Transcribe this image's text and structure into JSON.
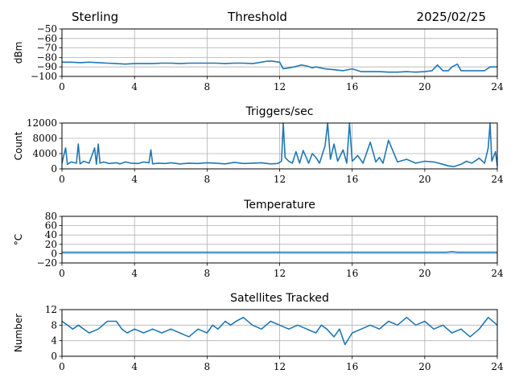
{
  "header": {
    "left": "Sterling",
    "center": "Threshold",
    "right": "2025/02/25"
  },
  "colors": {
    "line": "#1f77b4",
    "grid": "#b0b0b0",
    "axis": "#000000"
  },
  "chart_data": [
    {
      "type": "line",
      "title": "",
      "ylabel": "dBm",
      "xlim": [
        0,
        24
      ],
      "ylim": [
        -100,
        -50
      ],
      "xticks": [
        0,
        4,
        8,
        12,
        16,
        20,
        24
      ],
      "yticks": [
        -100,
        -90,
        -80,
        -70,
        -60,
        -50
      ],
      "ytick_labels": [
        "−100",
        "−90",
        "−80",
        "−70",
        "−60",
        "−50"
      ],
      "grid": true,
      "series": [
        {
          "x": [
            0,
            0.5,
            1,
            1.5,
            2,
            2.5,
            3,
            3.5,
            4,
            4.5,
            5,
            5.5,
            6,
            6.5,
            7,
            7.5,
            8,
            8.5,
            9,
            9.5,
            10,
            10.5,
            11,
            11.3,
            11.6,
            12,
            12.2,
            12.5,
            12.8,
            13,
            13.2,
            13.5,
            13.8,
            14,
            14.5,
            15,
            15.5,
            16,
            16.5,
            17,
            17.5,
            18,
            18.5,
            19,
            19.5,
            20,
            20.4,
            20.7,
            21,
            21.3,
            21.5,
            21.8,
            22,
            22.5,
            23,
            23.3,
            23.6,
            24
          ],
          "y": [
            -85,
            -85,
            -85.5,
            -85,
            -85.5,
            -86,
            -86.5,
            -87,
            -86.5,
            -86.5,
            -86.5,
            -86,
            -86,
            -86.5,
            -86,
            -86,
            -86,
            -86,
            -86.5,
            -86,
            -86,
            -86.5,
            -85,
            -84,
            -84,
            -85,
            -92,
            -91,
            -90,
            -89,
            -88,
            -89,
            -91,
            -90,
            -92,
            -93,
            -94,
            -92,
            -95,
            -95,
            -95,
            -95.5,
            -95.5,
            -95,
            -95.5,
            -95,
            -94,
            -88,
            -94,
            -94,
            -90,
            -87,
            -94,
            -94,
            -94,
            -94,
            -90,
            -90
          ]
        }
      ]
    },
    {
      "type": "line",
      "title": "Triggers/sec",
      "ylabel": "Count",
      "xlim": [
        0,
        24
      ],
      "ylim": [
        0,
        12000
      ],
      "xticks": [
        0,
        4,
        8,
        12,
        16,
        20,
        24
      ],
      "yticks": [
        0,
        4000,
        8000,
        12000
      ],
      "ytick_labels": [
        "0",
        "4000",
        "8000",
        "12000"
      ],
      "grid": true,
      "series": [
        {
          "x": [
            0,
            0.2,
            0.3,
            0.5,
            0.8,
            0.9,
            1,
            1.2,
            1.5,
            1.8,
            1.9,
            2,
            2.1,
            2.3,
            2.6,
            3,
            3.2,
            3.5,
            3.8,
            4.2,
            4.5,
            4.8,
            4.9,
            5,
            5.3,
            5.7,
            6,
            6.5,
            7,
            7.5,
            8,
            8.5,
            9,
            9.5,
            10,
            10.5,
            11,
            11.5,
            11.9,
            12.1,
            12.2,
            12.3,
            12.5,
            12.7,
            12.9,
            13.1,
            13.3,
            13.6,
            13.8,
            14,
            14.2,
            14.5,
            14.65,
            14.8,
            15,
            15.2,
            15.5,
            15.7,
            15.85,
            16,
            16.3,
            16.6,
            17,
            17.3,
            17.5,
            17.7,
            18,
            18.5,
            19,
            19.5,
            20,
            20.5,
            21,
            21.3,
            21.6,
            22,
            22.3,
            22.6,
            23,
            23.3,
            23.5,
            23.6,
            23.7,
            23.9,
            24
          ],
          "y": [
            1500,
            5500,
            1200,
            1800,
            1500,
            6500,
            1300,
            2000,
            1500,
            5500,
            1200,
            6500,
            1500,
            1800,
            1400,
            1600,
            1300,
            1800,
            1500,
            1400,
            1800,
            1600,
            5000,
            1300,
            1500,
            1400,
            1600,
            1300,
            1500,
            1400,
            1600,
            1500,
            1300,
            1700,
            1400,
            1500,
            1600,
            1300,
            1400,
            2000,
            12500,
            3000,
            2000,
            1500,
            4500,
            1500,
            4800,
            1500,
            4000,
            3000,
            1500,
            6000,
            12500,
            2500,
            6500,
            2000,
            5000,
            1500,
            12500,
            2000,
            3500,
            1500,
            7000,
            1800,
            3000,
            1500,
            7500,
            1800,
            2500,
            1500,
            2000,
            1800,
            1200,
            800,
            600,
            1200,
            2000,
            1500,
            2800,
            1500,
            5500,
            12500,
            2000,
            4500,
            800
          ]
        }
      ]
    },
    {
      "type": "line",
      "title": "Temperature",
      "ylabel": "°C",
      "xlim": [
        0,
        24
      ],
      "ylim": [
        -20,
        80
      ],
      "xticks": [
        0,
        4,
        8,
        12,
        16,
        20,
        24
      ],
      "yticks": [
        -20,
        0,
        20,
        40,
        60,
        80
      ],
      "ytick_labels": [
        "−20",
        "0",
        "20",
        "40",
        "60",
        "80"
      ],
      "grid": true,
      "series": [
        {
          "x": [
            0,
            4,
            8,
            12,
            16,
            20,
            21.2,
            21.5,
            21.8,
            24
          ],
          "y": [
            3,
            3,
            3,
            3,
            3,
            3,
            3,
            4,
            3,
            3
          ]
        }
      ]
    },
    {
      "type": "line",
      "title": "Satellites Tracked",
      "ylabel": "Number",
      "xlim": [
        0,
        24
      ],
      "ylim": [
        0,
        12
      ],
      "xticks": [
        0,
        4,
        8,
        12,
        16,
        20,
        24
      ],
      "yticks": [
        0,
        4,
        8,
        12
      ],
      "ytick_labels": [
        "0",
        "4",
        "8",
        "12"
      ],
      "grid": true,
      "series": [
        {
          "x": [
            0,
            0.3,
            0.6,
            0.9,
            1.2,
            1.5,
            2,
            2.5,
            3,
            3.3,
            3.6,
            4,
            4.5,
            5,
            5.5,
            6,
            6.5,
            7,
            7.5,
            8,
            8.3,
            8.6,
            9,
            9.3,
            9.6,
            10,
            10.5,
            11,
            11.5,
            12,
            12.5,
            13,
            13.5,
            14,
            14.3,
            14.6,
            15,
            15.3,
            15.6,
            16,
            16.5,
            17,
            17.5,
            18,
            18.5,
            19,
            19.5,
            20,
            20.5,
            21,
            21.5,
            22,
            22.5,
            23,
            23.5,
            24
          ],
          "y": [
            9,
            8,
            7,
            8,
            7,
            6,
            7,
            9,
            9,
            7,
            6,
            7,
            6,
            7,
            6,
            7,
            6,
            5,
            7,
            6,
            8,
            7,
            9,
            8,
            9,
            10,
            8,
            7,
            9,
            8,
            7,
            8,
            7,
            6,
            8,
            7,
            5,
            7,
            3,
            6,
            7,
            8,
            7,
            9,
            8,
            10,
            8,
            9,
            7,
            8,
            6,
            7,
            5,
            7,
            10,
            8
          ]
        }
      ]
    }
  ]
}
